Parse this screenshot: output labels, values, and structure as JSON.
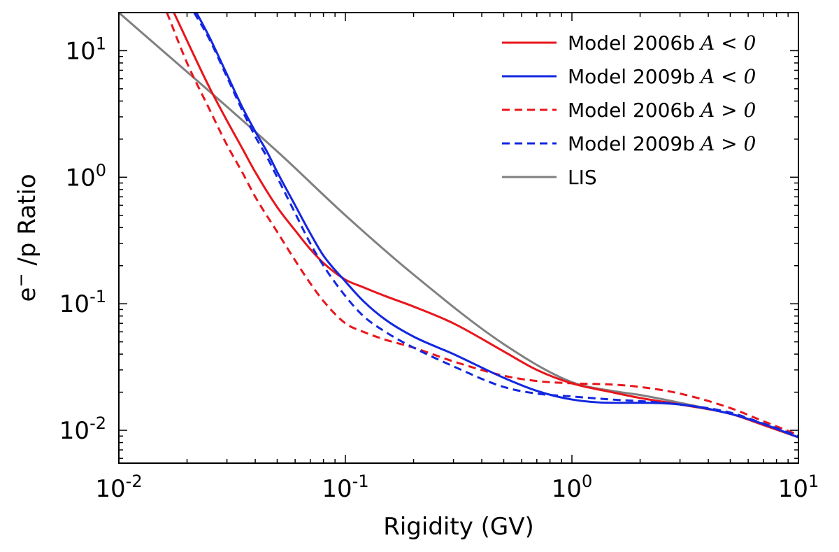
{
  "chart_data": {
    "type": "line",
    "xscale": "log",
    "yscale": "log",
    "xlim": [
      0.01,
      10
    ],
    "ylim": [
      0.0055,
      20
    ],
    "xlabel": "Rigidity  (GV)",
    "ylabel": {
      "base": "e",
      "sup": "−",
      "rest": " /p Ratio"
    },
    "xticks": [
      {
        "value": 0.01,
        "base": "10",
        "exp": "-2"
      },
      {
        "value": 0.1,
        "base": "10",
        "exp": "-1"
      },
      {
        "value": 1,
        "base": "10",
        "exp": "0"
      },
      {
        "value": 10,
        "base": "10",
        "exp": "1"
      }
    ],
    "yticks": [
      {
        "value": 0.01,
        "base": "10",
        "exp": "-2"
      },
      {
        "value": 0.1,
        "base": "10",
        "exp": "-1"
      },
      {
        "value": 1,
        "base": "10",
        "exp": "0"
      },
      {
        "value": 10,
        "base": "10",
        "exp": "1"
      }
    ],
    "legend_position": "top-right",
    "series": [
      {
        "name": "Model 2006b",
        "math": "A < 0",
        "color": "#e8161c",
        "dashed": false,
        "x": [
          0.0175,
          0.02,
          0.025,
          0.03,
          0.035,
          0.04,
          0.05,
          0.06,
          0.07,
          0.08,
          0.1,
          0.12,
          0.15,
          0.2,
          0.3,
          0.5,
          0.7,
          1.0,
          1.5,
          2.0,
          3.0,
          5.0,
          7.0,
          10.0
        ],
        "y": [
          20.0,
          12.0,
          5.2,
          2.8,
          1.7,
          1.1,
          0.58,
          0.38,
          0.27,
          0.21,
          0.155,
          0.135,
          0.115,
          0.095,
          0.07,
          0.042,
          0.03,
          0.0235,
          0.02,
          0.018,
          0.016,
          0.0135,
          0.011,
          0.0088
        ]
      },
      {
        "name": "Model 2009b",
        "math": "A < 0",
        "color": "#1327e0",
        "dashed": false,
        "x": [
          0.022,
          0.025,
          0.03,
          0.035,
          0.04,
          0.045,
          0.05,
          0.06,
          0.07,
          0.08,
          0.1,
          0.12,
          0.15,
          0.2,
          0.3,
          0.5,
          0.7,
          1.0,
          1.5,
          2.0,
          3.0,
          5.0,
          7.0,
          10.0
        ],
        "y": [
          20.0,
          13.0,
          6.5,
          3.6,
          2.3,
          1.6,
          1.1,
          0.6,
          0.36,
          0.24,
          0.15,
          0.105,
          0.075,
          0.055,
          0.04,
          0.026,
          0.0205,
          0.0175,
          0.0165,
          0.0165,
          0.016,
          0.0135,
          0.0112,
          0.0088
        ]
      },
      {
        "name": "Model 2006b",
        "math": "A > 0",
        "color": "#e8161c",
        "dashed": true,
        "x": [
          0.0163,
          0.02,
          0.025,
          0.03,
          0.035,
          0.04,
          0.05,
          0.06,
          0.07,
          0.08,
          0.1,
          0.12,
          0.15,
          0.2,
          0.3,
          0.5,
          0.7,
          1.0,
          1.5,
          2.0,
          3.0,
          5.0,
          7.0,
          10.0
        ],
        "y": [
          20.0,
          8.0,
          3.5,
          1.8,
          1.1,
          0.7,
          0.37,
          0.22,
          0.145,
          0.105,
          0.07,
          0.06,
          0.052,
          0.045,
          0.035,
          0.027,
          0.0245,
          0.0235,
          0.023,
          0.022,
          0.0195,
          0.015,
          0.0118,
          0.0092
        ]
      },
      {
        "name": "Model 2009b",
        "math": "A > 0",
        "color": "#1327e0",
        "dashed": true,
        "x": [
          0.0215,
          0.025,
          0.03,
          0.035,
          0.04,
          0.045,
          0.05,
          0.06,
          0.07,
          0.08,
          0.1,
          0.12,
          0.15,
          0.2,
          0.3,
          0.5,
          0.7,
          1.0,
          1.5,
          2.0,
          3.0,
          5.0,
          7.0,
          10.0
        ],
        "y": [
          20.0,
          12.5,
          6.2,
          3.4,
          2.1,
          1.45,
          1.0,
          0.52,
          0.3,
          0.2,
          0.115,
          0.08,
          0.06,
          0.045,
          0.032,
          0.022,
          0.0195,
          0.0185,
          0.0175,
          0.017,
          0.016,
          0.0138,
          0.0113,
          0.009
        ]
      },
      {
        "name": "LIS",
        "math": "",
        "color": "#808080",
        "dashed": false,
        "x": [
          0.01,
          0.05,
          0.1,
          0.2,
          0.5,
          1.0,
          1.5,
          2.0,
          3.0,
          5.0,
          7.0,
          10.0
        ],
        "y": [
          20.0,
          1.6,
          0.5,
          0.17,
          0.048,
          0.024,
          0.0205,
          0.019,
          0.0165,
          0.0135,
          0.0112,
          0.0088
        ]
      }
    ]
  }
}
